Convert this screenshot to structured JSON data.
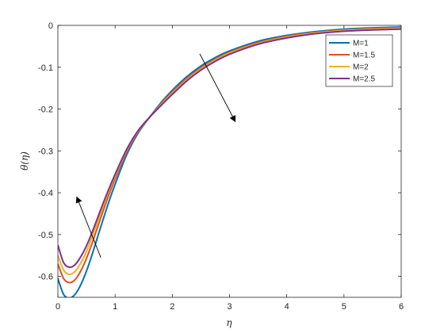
{
  "chart_data": {
    "type": "line",
    "xlabel": "η",
    "ylabel": "θ(η)",
    "xlim": [
      0,
      6
    ],
    "ylim": [
      -0.65,
      0
    ],
    "xticks": [
      "0",
      "1",
      "2",
      "3",
      "4",
      "5",
      "6"
    ],
    "yticks": [
      "0",
      "-0.1",
      "-0.2",
      "-0.3",
      "-0.4",
      "-0.5",
      "-0.6"
    ],
    "grid": false,
    "legend_position": "top-right",
    "series": [
      {
        "name": "M=1",
        "color": "#0072BD",
        "x": [
          0,
          0.1,
          0.2,
          0.3,
          0.4,
          0.5,
          0.6,
          0.7,
          0.8,
          0.9,
          1.0,
          1.2,
          1.4,
          1.6,
          1.8,
          2.0,
          2.25,
          2.5,
          2.75,
          3.0,
          3.5,
          4.0,
          4.5,
          5.0,
          5.5,
          6.0
        ],
        "y": [
          -0.605,
          -0.643,
          -0.652,
          -0.643,
          -0.62,
          -0.587,
          -0.547,
          -0.503,
          -0.46,
          -0.418,
          -0.38,
          -0.31,
          -0.258,
          -0.22,
          -0.185,
          -0.155,
          -0.123,
          -0.097,
          -0.077,
          -0.061,
          -0.038,
          -0.024,
          -0.015,
          -0.009,
          -0.006,
          -0.004
        ]
      },
      {
        "name": "M=1.5",
        "color": "#D95319",
        "x": [
          0,
          0.1,
          0.2,
          0.3,
          0.4,
          0.5,
          0.6,
          0.7,
          0.8,
          0.9,
          1.0,
          1.2,
          1.4,
          1.6,
          1.8,
          2.0,
          2.25,
          2.5,
          2.75,
          3.0,
          3.5,
          4.0,
          4.5,
          5.0,
          5.5,
          6.0
        ],
        "y": [
          -0.57,
          -0.605,
          -0.615,
          -0.608,
          -0.587,
          -0.557,
          -0.52,
          -0.48,
          -0.44,
          -0.402,
          -0.367,
          -0.303,
          -0.255,
          -0.22,
          -0.188,
          -0.159,
          -0.127,
          -0.101,
          -0.081,
          -0.064,
          -0.041,
          -0.026,
          -0.017,
          -0.011,
          -0.008,
          -0.006
        ]
      },
      {
        "name": "M=2",
        "color": "#EDB120",
        "x": [
          0,
          0.1,
          0.2,
          0.3,
          0.4,
          0.5,
          0.6,
          0.7,
          0.8,
          0.9,
          1.0,
          1.2,
          1.4,
          1.6,
          1.8,
          2.0,
          2.25,
          2.5,
          2.75,
          3.0,
          3.5,
          4.0,
          4.5,
          5.0,
          5.5,
          6.0
        ],
        "y": [
          -0.55,
          -0.585,
          -0.595,
          -0.588,
          -0.568,
          -0.54,
          -0.505,
          -0.467,
          -0.429,
          -0.393,
          -0.36,
          -0.299,
          -0.253,
          -0.22,
          -0.19,
          -0.162,
          -0.13,
          -0.104,
          -0.083,
          -0.066,
          -0.043,
          -0.028,
          -0.018,
          -0.012,
          -0.009,
          -0.007
        ]
      },
      {
        "name": "M=2.5",
        "color": "#7E2F8E",
        "x": [
          0,
          0.1,
          0.2,
          0.3,
          0.4,
          0.5,
          0.6,
          0.7,
          0.8,
          0.9,
          1.0,
          1.2,
          1.4,
          1.6,
          1.8,
          2.0,
          2.25,
          2.5,
          2.75,
          3.0,
          3.5,
          4.0,
          4.5,
          5.0,
          5.5,
          6.0
        ],
        "y": [
          -0.525,
          -0.567,
          -0.578,
          -0.572,
          -0.553,
          -0.527,
          -0.494,
          -0.458,
          -0.422,
          -0.388,
          -0.356,
          -0.297,
          -0.252,
          -0.22,
          -0.192,
          -0.165,
          -0.133,
          -0.107,
          -0.086,
          -0.069,
          -0.045,
          -0.03,
          -0.02,
          -0.014,
          -0.011,
          -0.009
        ]
      }
    ],
    "annotations": [
      {
        "type": "arrow",
        "from": [
          0.75,
          -0.555
        ],
        "to": [
          0.33,
          -0.41
        ]
      },
      {
        "type": "arrow",
        "from": [
          2.48,
          -0.068
        ],
        "to": [
          3.1,
          -0.23
        ]
      }
    ]
  }
}
